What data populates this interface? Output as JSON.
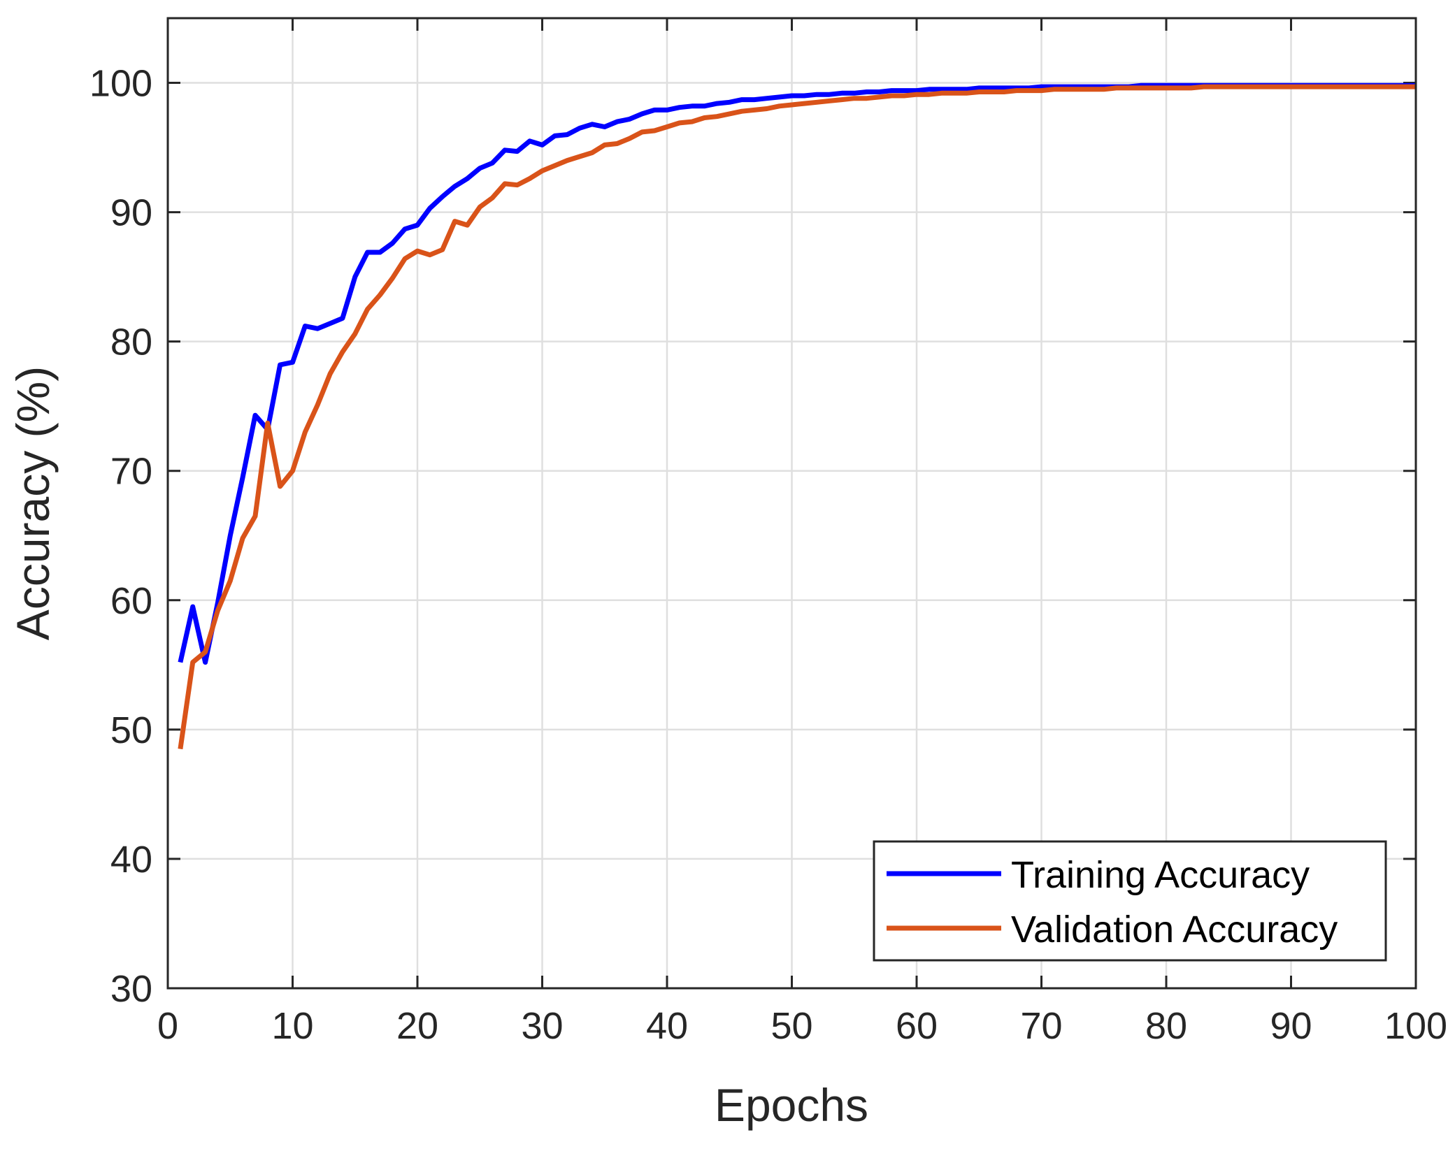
{
  "chart_data": {
    "type": "line",
    "xlabel": "Epochs",
    "ylabel": "Accuracy (%)",
    "xlim": [
      0,
      100
    ],
    "ylim": [
      30,
      105
    ],
    "xticks": [
      0,
      10,
      20,
      30,
      40,
      50,
      60,
      70,
      80,
      90,
      100
    ],
    "yticks": [
      30,
      40,
      50,
      60,
      70,
      80,
      90,
      100
    ],
    "xtick_labels": [
      "0",
      "10",
      "20",
      "30",
      "40",
      "50",
      "60",
      "70",
      "80",
      "90",
      "100"
    ],
    "ytick_labels": [
      "30",
      "40",
      "50",
      "60",
      "70",
      "80",
      "90",
      "100"
    ],
    "grid": true,
    "legend_position": "bottom-right",
    "x": [
      1,
      2,
      3,
      4,
      5,
      6,
      7,
      8,
      9,
      10,
      11,
      12,
      13,
      14,
      15,
      16,
      17,
      18,
      19,
      20,
      21,
      22,
      23,
      24,
      25,
      26,
      27,
      28,
      29,
      30,
      31,
      32,
      33,
      34,
      35,
      36,
      37,
      38,
      39,
      40,
      41,
      42,
      43,
      44,
      45,
      46,
      47,
      48,
      49,
      50,
      51,
      52,
      53,
      54,
      55,
      56,
      57,
      58,
      59,
      60,
      61,
      62,
      63,
      64,
      65,
      66,
      67,
      68,
      69,
      70,
      71,
      72,
      73,
      74,
      75,
      76,
      77,
      78,
      79,
      80,
      81,
      82,
      83,
      84,
      85,
      86,
      87,
      88,
      89,
      90,
      91,
      92,
      93,
      94,
      95,
      96,
      97,
      98,
      99,
      100
    ],
    "series": [
      {
        "name": "Training Accuracy",
        "color": "#0000ff",
        "values": [
          55.2,
          59.5,
          55.2,
          59.8,
          65.0,
          69.5,
          74.3,
          73.2,
          78.2,
          78.4,
          81.2,
          81.0,
          81.4,
          81.8,
          85.0,
          86.9,
          86.9,
          87.6,
          88.7,
          89.0,
          90.3,
          91.2,
          92.0,
          92.6,
          93.4,
          93.8,
          94.8,
          94.7,
          95.5,
          95.2,
          95.9,
          96.0,
          96.5,
          96.8,
          96.6,
          97.0,
          97.2,
          97.6,
          97.9,
          97.9,
          98.1,
          98.2,
          98.2,
          98.4,
          98.5,
          98.7,
          98.7,
          98.8,
          98.9,
          99.0,
          99.0,
          99.1,
          99.1,
          99.2,
          99.2,
          99.3,
          99.3,
          99.4,
          99.4,
          99.4,
          99.5,
          99.5,
          99.5,
          99.5,
          99.6,
          99.6,
          99.6,
          99.6,
          99.6,
          99.7,
          99.7,
          99.7,
          99.7,
          99.7,
          99.7,
          99.7,
          99.7,
          99.8,
          99.8,
          99.8,
          99.8,
          99.8,
          99.8,
          99.8,
          99.8,
          99.8,
          99.8,
          99.8,
          99.8,
          99.8,
          99.8,
          99.8,
          99.8,
          99.8,
          99.8,
          99.8,
          99.8,
          99.8,
          99.8,
          99.8
        ]
      },
      {
        "name": "Validation Accuracy",
        "color": "#d95319",
        "values": [
          48.5,
          55.2,
          56.0,
          59.2,
          61.5,
          64.8,
          66.5,
          73.7,
          68.8,
          70.0,
          73.0,
          75.1,
          77.5,
          79.2,
          80.6,
          82.5,
          83.6,
          84.9,
          86.4,
          87.0,
          86.7,
          87.1,
          89.3,
          89.0,
          90.4,
          91.1,
          92.2,
          92.1,
          92.6,
          93.2,
          93.6,
          94.0,
          94.3,
          94.6,
          95.2,
          95.3,
          95.7,
          96.2,
          96.3,
          96.6,
          96.9,
          97.0,
          97.3,
          97.4,
          97.6,
          97.8,
          97.9,
          98.0,
          98.2,
          98.3,
          98.4,
          98.5,
          98.6,
          98.7,
          98.8,
          98.8,
          98.9,
          99.0,
          99.0,
          99.1,
          99.1,
          99.2,
          99.2,
          99.2,
          99.3,
          99.3,
          99.3,
          99.4,
          99.4,
          99.4,
          99.5,
          99.5,
          99.5,
          99.5,
          99.5,
          99.6,
          99.6,
          99.6,
          99.6,
          99.6,
          99.6,
          99.6,
          99.7,
          99.7,
          99.7,
          99.7,
          99.7,
          99.7,
          99.7,
          99.7,
          99.7,
          99.7,
          99.7,
          99.7,
          99.7,
          99.7,
          99.7,
          99.7,
          99.7,
          99.7
        ]
      }
    ]
  }
}
